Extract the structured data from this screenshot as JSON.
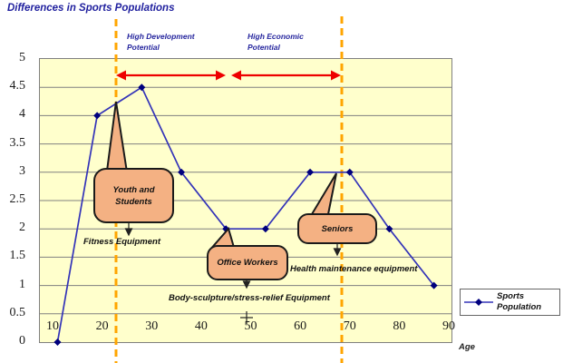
{
  "title": "Differences in Sports Populations",
  "zones": {
    "development": {
      "line1": "High Development",
      "line2": "Potential"
    },
    "economic": {
      "line1": "High Economic",
      "line2": "Potential"
    }
  },
  "callouts": {
    "youth": {
      "line1": "Youth and",
      "line2": "Students"
    },
    "office": {
      "label": "Office Workers"
    },
    "seniors": {
      "label": "Seniors"
    }
  },
  "equipment_labels": {
    "fitness": "Fitness Equipment",
    "body": "Body-sculpture/stress-relief Equipment",
    "health": "Health maintenance equipment"
  },
  "axis": {
    "x_label": "Age"
  },
  "legend": {
    "series_line1": "Sports",
    "series_line2": "Population"
  },
  "colors": {
    "plot_fill": "#FFFFCC",
    "series_line": "#3333B8",
    "series_marker": "#00007D",
    "boundary_dash": "#FFA500",
    "zone_arrow": "#EE0000",
    "callout_fill": "#F4B183",
    "title_text": "#1F1F9E"
  },
  "chart_data": {
    "type": "line",
    "title": "Differences in Sports Populations",
    "xlabel": "Age",
    "ylabel": "",
    "x_ticks": [
      10,
      20,
      30,
      40,
      50,
      60,
      70,
      80,
      90
    ],
    "y_ticks": [
      0,
      0.5,
      1,
      1.5,
      2,
      2.5,
      3,
      3.5,
      4,
      4.5,
      5
    ],
    "xlim": [
      7,
      91
    ],
    "ylim": [
      0,
      5
    ],
    "grid": true,
    "legend_position": "right-bottom",
    "series": [
      {
        "name": "Sports Population",
        "points": [
          [
            11,
            0
          ],
          [
            19,
            4
          ],
          [
            28,
            4.5
          ],
          [
            36,
            3
          ],
          [
            45,
            2
          ],
          [
            53,
            2
          ],
          [
            62,
            3
          ],
          [
            70,
            3
          ],
          [
            78,
            2
          ],
          [
            87,
            1
          ]
        ]
      }
    ],
    "zone_boundaries_age": [
      23,
      68
    ],
    "zones": [
      {
        "label": "High Development Potential",
        "age_range": [
          23,
          45
        ]
      },
      {
        "label": "High Economic Potential",
        "age_range": [
          46,
          68
        ]
      }
    ],
    "callout_annotations": [
      {
        "label": "Youth and Students",
        "points_to_age": 22,
        "note_below": "Fitness Equipment"
      },
      {
        "label": "Office Workers",
        "points_to_age": 45,
        "note_below": "Body-sculpture/stress-relief Equipment"
      },
      {
        "label": "Seniors",
        "points_to_age": 67,
        "note_below": "Health maintenance equipment"
      }
    ]
  }
}
